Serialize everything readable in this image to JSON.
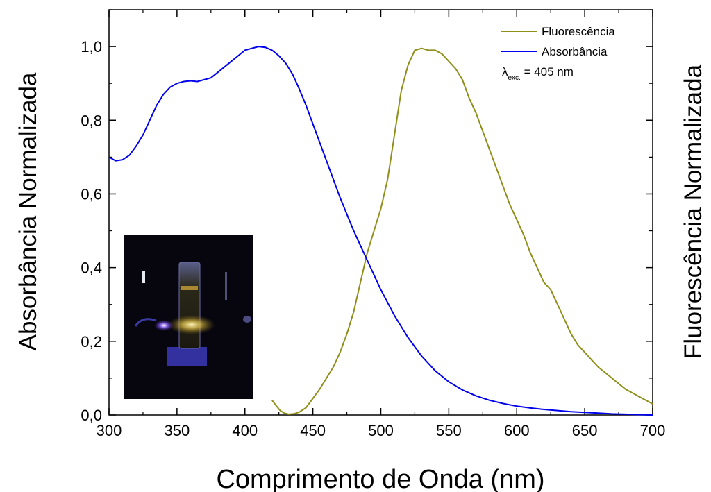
{
  "chart_data": {
    "type": "line",
    "xlabel": "Comprimento de Onda (nm)",
    "ylabel_left": "Absorbância Normalizada",
    "ylabel_right": "Fluorescência Normalizada",
    "xlim": [
      300,
      700
    ],
    "ylim": [
      0,
      1.1
    ],
    "x_ticks": [
      300,
      350,
      400,
      450,
      500,
      550,
      600,
      650,
      700
    ],
    "y_ticks": [
      0.0,
      0.2,
      0.4,
      0.6,
      0.8,
      1.0
    ],
    "y_tick_labels": [
      "0,0",
      "0,2",
      "0,4",
      "0,6",
      "0,8",
      "1,0"
    ],
    "grid": false,
    "legend_position": "top-right",
    "annotation": {
      "symbol": "λ",
      "subscript": "exc.",
      "text": " = 405 nm"
    },
    "inset": "photo of a cuvette glowing yellow under violet laser excitation",
    "series": [
      {
        "name": "Fluorescência",
        "color": "#8f8f1a",
        "x": [
          420,
          423,
          426,
          429,
          432,
          436,
          440,
          445,
          450,
          455,
          460,
          465,
          470,
          475,
          480,
          485,
          490,
          495,
          500,
          505,
          510,
          515,
          520,
          525,
          530,
          535,
          540,
          545,
          550,
          555,
          560,
          565,
          570,
          575,
          580,
          585,
          590,
          595,
          600,
          605,
          610,
          615,
          620,
          625,
          630,
          635,
          640,
          645,
          650,
          655,
          660,
          665,
          670,
          675,
          680,
          685,
          690,
          695,
          700
        ],
        "y": [
          0.04,
          0.025,
          0.012,
          0.005,
          0.002,
          0.003,
          0.008,
          0.02,
          0.045,
          0.07,
          0.1,
          0.13,
          0.17,
          0.22,
          0.28,
          0.36,
          0.44,
          0.5,
          0.56,
          0.64,
          0.76,
          0.88,
          0.95,
          0.99,
          0.995,
          0.99,
          0.99,
          0.98,
          0.96,
          0.94,
          0.91,
          0.86,
          0.82,
          0.77,
          0.72,
          0.67,
          0.62,
          0.57,
          0.53,
          0.49,
          0.44,
          0.4,
          0.36,
          0.34,
          0.3,
          0.26,
          0.22,
          0.19,
          0.17,
          0.15,
          0.13,
          0.115,
          0.1,
          0.085,
          0.07,
          0.06,
          0.05,
          0.04,
          0.03
        ]
      },
      {
        "name": "Absorbância",
        "color": "#0000ee",
        "x": [
          300,
          305,
          310,
          315,
          320,
          325,
          330,
          335,
          340,
          345,
          350,
          355,
          360,
          365,
          370,
          375,
          380,
          385,
          390,
          395,
          400,
          405,
          410,
          415,
          420,
          425,
          430,
          435,
          440,
          445,
          450,
          455,
          460,
          465,
          470,
          475,
          480,
          485,
          490,
          495,
          500,
          505,
          510,
          515,
          520,
          530,
          540,
          550,
          560,
          570,
          580,
          590,
          600,
          610,
          620,
          630,
          640,
          650,
          660,
          670,
          680,
          690,
          700
        ],
        "y": [
          0.7,
          0.69,
          0.693,
          0.705,
          0.73,
          0.76,
          0.8,
          0.84,
          0.87,
          0.89,
          0.9,
          0.905,
          0.907,
          0.905,
          0.91,
          0.915,
          0.93,
          0.945,
          0.96,
          0.975,
          0.99,
          0.995,
          1.0,
          0.998,
          0.99,
          0.975,
          0.955,
          0.925,
          0.885,
          0.84,
          0.79,
          0.74,
          0.69,
          0.64,
          0.59,
          0.545,
          0.5,
          0.46,
          0.42,
          0.38,
          0.34,
          0.305,
          0.27,
          0.24,
          0.21,
          0.16,
          0.12,
          0.09,
          0.068,
          0.052,
          0.04,
          0.031,
          0.024,
          0.019,
          0.015,
          0.012,
          0.009,
          0.007,
          0.005,
          0.003,
          0.002,
          0.001,
          0.0
        ]
      }
    ]
  }
}
